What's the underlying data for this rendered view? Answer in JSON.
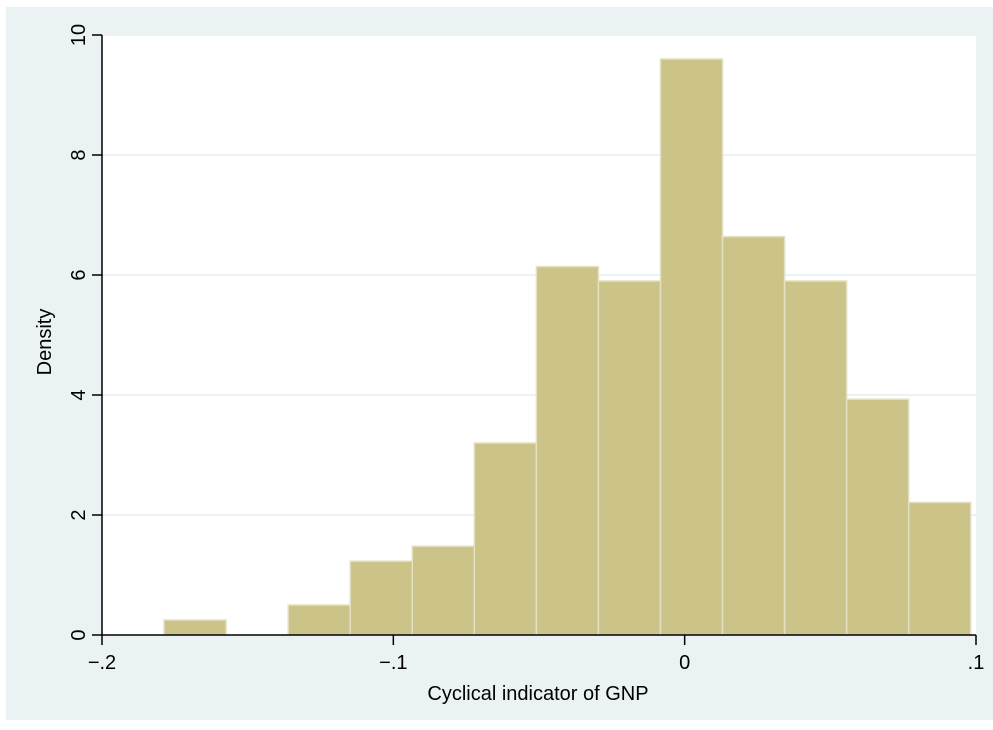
{
  "chart_data": {
    "type": "bar",
    "title": "",
    "xlabel": "Cyclical indicator of GNP",
    "ylabel": "Density",
    "xlim": [
      -0.2,
      0.1
    ],
    "ylim": [
      0,
      10
    ],
    "x_ticks": [
      -0.2,
      -0.1,
      0,
      0.1
    ],
    "x_tick_labels": [
      "−.2",
      "−.1",
      "0",
      ".1"
    ],
    "y_ticks": [
      0,
      2,
      4,
      6,
      8,
      10
    ],
    "y_tick_labels": [
      "0",
      "2",
      "4",
      "6",
      "8",
      "10"
    ],
    "grid": true,
    "bins": [
      {
        "x0": -0.1787,
        "x1": -0.1574,
        "density": 0.25
      },
      {
        "x0": -0.1574,
        "x1": -0.1361,
        "density": 0
      },
      {
        "x0": -0.1361,
        "x1": -0.1148,
        "density": 0.5
      },
      {
        "x0": -0.1148,
        "x1": -0.0935,
        "density": 1.23
      },
      {
        "x0": -0.0935,
        "x1": -0.0722,
        "density": 1.48
      },
      {
        "x0": -0.0722,
        "x1": -0.0509,
        "density": 3.2
      },
      {
        "x0": -0.0509,
        "x1": -0.0296,
        "density": 6.14
      },
      {
        "x0": -0.0296,
        "x1": -0.0083,
        "density": 5.9
      },
      {
        "x0": -0.0083,
        "x1": 0.013,
        "density": 9.6
      },
      {
        "x0": 0.013,
        "x1": 0.0343,
        "density": 6.64
      },
      {
        "x0": 0.0343,
        "x1": 0.0556,
        "density": 5.9
      },
      {
        "x0": 0.0556,
        "x1": 0.0769,
        "density": 3.93
      },
      {
        "x0": 0.0769,
        "x1": 0.0982,
        "density": 2.21
      }
    ],
    "colors": {
      "bar_fill": "#cbc388",
      "bar_stroke": "#e4e0c2",
      "background": "#eaf2f3",
      "plot_background": "#ffffff",
      "grid": "#eaf2f3",
      "axis": "#000000"
    }
  }
}
